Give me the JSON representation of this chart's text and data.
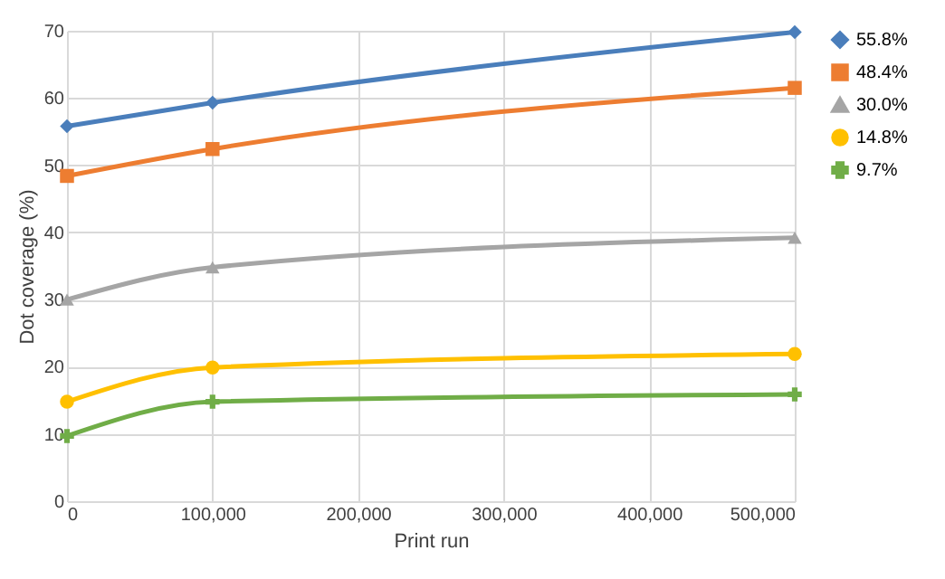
{
  "chart_data": {
    "type": "line",
    "xlabel": "Print run",
    "ylabel": "Dot coverage (%)",
    "x": [
      0,
      100000,
      500000
    ],
    "xlim": [
      0,
      500000
    ],
    "xticks": [
      {
        "value": 0,
        "label": "0"
      },
      {
        "value": 100000,
        "label": "100,000"
      },
      {
        "value": 200000,
        "label": "200,000"
      },
      {
        "value": 300000,
        "label": "300,000"
      },
      {
        "value": 400000,
        "label": "400,000"
      },
      {
        "value": 500000,
        "label": "500,000"
      }
    ],
    "ylim": [
      0,
      70
    ],
    "yticks": [
      0,
      10,
      20,
      30,
      40,
      50,
      60,
      70
    ],
    "grid": true,
    "legend": "right",
    "line_style": "solid",
    "series": [
      {
        "name": "55.8%",
        "color": "#4a7ebb",
        "marker": "diamond",
        "values": [
          55.8,
          59.3,
          69.8
        ]
      },
      {
        "name": "48.4%",
        "color": "#ed7d31",
        "marker": "square",
        "values": [
          48.4,
          52.4,
          61.5
        ]
      },
      {
        "name": "30.0%",
        "color": "#a5a5a5",
        "marker": "triangle",
        "values": [
          30.0,
          34.8,
          39.2
        ]
      },
      {
        "name": "14.8%",
        "color": "#ffc000",
        "marker": "circle",
        "values": [
          14.8,
          19.9,
          21.9
        ]
      },
      {
        "name": "9.7%",
        "color": "#70ad47",
        "marker": "cross",
        "values": [
          9.7,
          14.8,
          15.9
        ]
      }
    ]
  }
}
